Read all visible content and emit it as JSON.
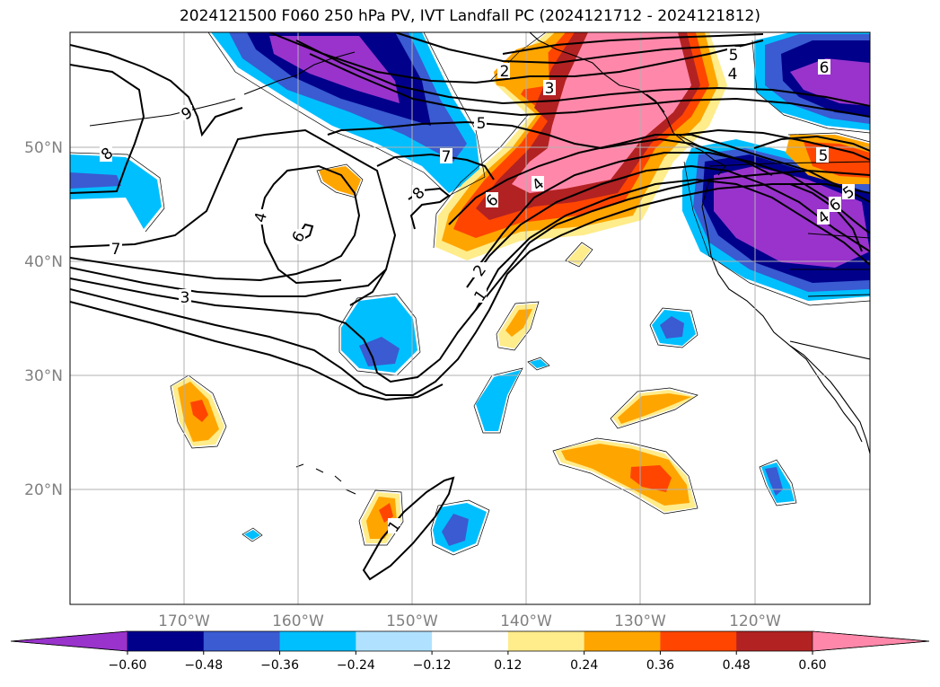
{
  "title": "2024121500 F060 250 hPa PV, IVT Landfall PC (2024121712 - 2024121812)",
  "lat_labels": [
    "50°N",
    "40°N",
    "30°N",
    "20°N"
  ],
  "lon_labels": [
    "170°W",
    "160°W",
    "150°W",
    "140°W",
    "130°W",
    "120°W"
  ],
  "colorbar": {
    "colors": [
      "#9933cc",
      "#00008b",
      "#3a5bd1",
      "#00bfff",
      "#b0e2ff",
      "#ffffff",
      "#ffec8b",
      "#ffa500",
      "#ff4500",
      "#b22222",
      "#ff88aa"
    ],
    "labels": [
      "−0.60",
      "−0.48",
      "−0.36",
      "−0.24",
      "−0.12",
      "0.12",
      "0.24",
      "0.36",
      "0.48",
      "0.60"
    ]
  },
  "contour_labels": [
    "9",
    "8",
    "7",
    "3",
    "4",
    "5",
    "6",
    "2",
    "3",
    "5",
    "7",
    "8",
    "6",
    "4",
    "2",
    "1",
    "5",
    "4",
    "6",
    "5",
    "6",
    "4",
    "1"
  ],
  "colors": {
    "grid": "#b0b0b0",
    "tick_text": "#808080",
    "contour": "#000000",
    "coast": "#000000"
  }
}
